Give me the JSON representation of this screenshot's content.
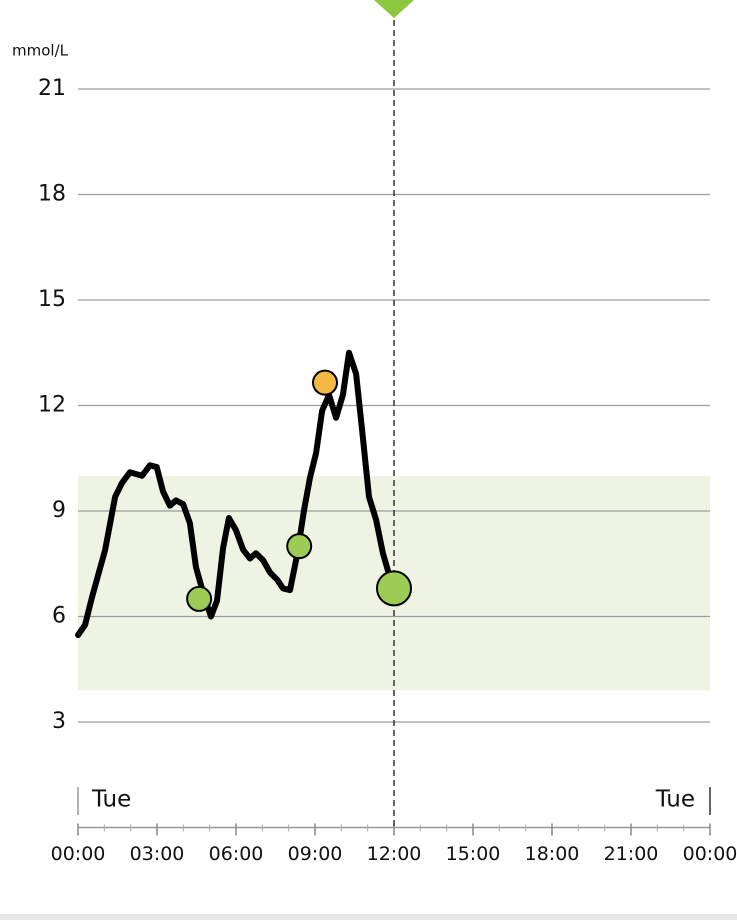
{
  "chart_data": {
    "type": "line",
    "y_label": "mmol/L",
    "day_labels": [
      "Tue",
      "Tue"
    ],
    "xlim": [
      0,
      24
    ],
    "ylim": [
      0,
      21
    ],
    "xticks": [
      {
        "value": 0,
        "label": "00:00"
      },
      {
        "value": 3,
        "label": "03:00"
      },
      {
        "value": 6,
        "label": "06:00"
      },
      {
        "value": 9,
        "label": "09:00"
      },
      {
        "value": 12,
        "label": "12:00"
      },
      {
        "value": 15,
        "label": "15:00"
      },
      {
        "value": 18,
        "label": "18:00"
      },
      {
        "value": 21,
        "label": "21:00"
      },
      {
        "value": 24,
        "label": "00:00"
      }
    ],
    "yticks": [
      3,
      6,
      9,
      12,
      15,
      18,
      21
    ],
    "grid": true,
    "target_range": [
      3.9,
      10.0
    ],
    "target_color": "#eef3e4",
    "current_time": 12,
    "color": "#000000",
    "x": [
      0,
      0.27,
      0.53,
      1.03,
      1.41,
      1.67,
      1.97,
      2.43,
      2.73,
      2.99,
      3.23,
      3.49,
      3.72,
      3.99,
      4.25,
      4.48,
      4.82,
      5.05,
      5.28,
      5.51,
      5.73,
      6.0,
      6.27,
      6.53,
      6.76,
      7.03,
      7.29,
      7.56,
      7.79,
      8.05,
      8.32,
      8.58,
      8.81,
      9.04,
      9.27,
      9.53,
      9.8,
      10.06,
      10.29,
      10.56,
      10.79,
      11.05,
      11.32,
      11.58,
      11.85,
      12.0
    ],
    "values": [
      5.47,
      5.76,
      6.55,
      7.89,
      9.4,
      9.8,
      10.1,
      10.0,
      10.3,
      10.25,
      9.55,
      9.15,
      9.3,
      9.2,
      8.65,
      7.4,
      6.5,
      6.0,
      6.45,
      7.95,
      8.8,
      8.45,
      7.9,
      7.65,
      7.8,
      7.6,
      7.25,
      7.05,
      6.8,
      6.75,
      7.75,
      9.0,
      9.95,
      10.65,
      11.85,
      12.3,
      11.65,
      12.3,
      13.5,
      12.9,
      11.3,
      9.4,
      8.75,
      7.8,
      7.1,
      6.8
    ],
    "markers": {
      "x": [
        4.6,
        8.4,
        9.38,
        12.0
      ],
      "values": [
        6.5,
        8.0,
        12.65,
        6.8
      ],
      "colors": [
        "#9ccc55",
        "#9ccc55",
        "#f4b844",
        "#9ccc55"
      ]
    }
  }
}
